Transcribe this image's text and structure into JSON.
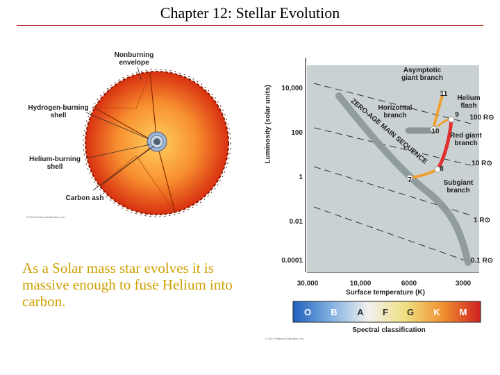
{
  "header": {
    "title": "Chapter 12: Stellar Evolution"
  },
  "caption": "As a Solar mass star evolves it is massive enough to fuse Helium into carbon.",
  "star_diagram": {
    "labels": {
      "nonburning": "Nonburning envelope",
      "hydrogen": "Hydrogen-burning shell",
      "helium": "Helium-burning shell",
      "carbon": "Carbon ash"
    },
    "copyright": "© 2010 Pearson Education, Inc."
  },
  "hr_diagram": {
    "y_axis_label": "Luminosity (solar units)",
    "y_ticks": [
      "10,000",
      "100",
      "1",
      "0.01",
      "0.0001"
    ],
    "x_axis_label": "Surface temperature (K)",
    "x_ticks": [
      "30,000",
      "10,000",
      "6000",
      "3000"
    ],
    "radius_labels": [
      "100 R⊙",
      "10 R⊙",
      "1 R⊙",
      "0.1 R⊙"
    ],
    "main_sequence_label": "ZERO-AGE MAIN SEQUENCE",
    "region_labels": {
      "asymptotic": "Asymptotic giant branch",
      "helium_flash": "Helium flash",
      "horizontal": "Horizontal branch",
      "red_giant": "Red giant branch",
      "subgiant": "Subgiant branch"
    },
    "stage_numbers": [
      "7",
      "8",
      "9",
      "10",
      "11"
    ],
    "spectral_classes": [
      "O",
      "B",
      "A",
      "F",
      "G",
      "K",
      "M"
    ],
    "spectral_label": "Spectral classification",
    "copyright": "© 2010 Pearson Education, Inc."
  }
}
